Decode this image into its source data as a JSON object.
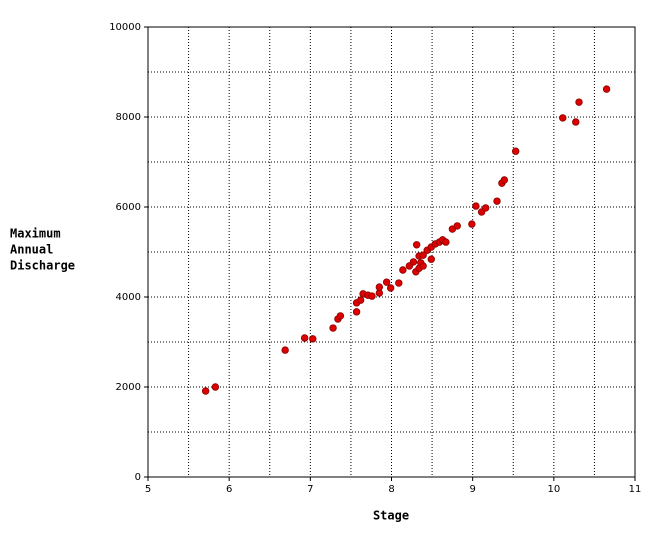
{
  "chart_data": {
    "type": "scatter",
    "xlabel": "Stage",
    "ylabel": [
      "Maximum",
      "Annual",
      "Discharge"
    ],
    "xlim": [
      5,
      11
    ],
    "xticks": [
      5,
      6,
      7,
      8,
      9,
      10,
      11
    ],
    "ylim": [
      0,
      10000
    ],
    "yticks": [
      0,
      2000,
      4000,
      6000,
      8000,
      10000
    ],
    "xgrid": [
      5.5,
      6,
      6.5,
      7,
      7.5,
      8,
      8.5,
      9,
      9.5,
      10,
      10.5
    ],
    "ygrid": [
      1000,
      2000,
      3000,
      4000,
      5000,
      6000,
      7000,
      8000,
      9000
    ],
    "grid": true,
    "color": "#dd0000",
    "x": [
      5.71,
      5.83,
      6.69,
      6.93,
      7.03,
      7.28,
      7.34,
      7.37,
      7.57,
      7.57,
      7.62,
      7.65,
      7.71,
      7.76,
      7.85,
      7.85,
      7.94,
      7.99,
      8.09,
      8.14,
      8.22,
      8.27,
      8.3,
      8.31,
      8.34,
      8.34,
      8.36,
      8.39,
      8.39,
      8.44,
      8.49,
      8.49,
      8.54,
      8.59,
      8.63,
      8.67,
      8.75,
      8.81,
      8.99,
      9.04,
      9.11,
      9.16,
      9.3,
      9.36,
      9.39,
      9.53,
      10.11,
      10.27,
      10.31,
      10.65
    ],
    "values": [
      1910,
      2000,
      2820,
      3090,
      3070,
      3310,
      3510,
      3580,
      3670,
      3870,
      3930,
      4070,
      4040,
      4020,
      4090,
      4220,
      4330,
      4200,
      4310,
      4600,
      4690,
      4780,
      4560,
      5160,
      4640,
      4910,
      4760,
      4930,
      4690,
      5040,
      4840,
      5110,
      5180,
      5220,
      5270,
      5220,
      5510,
      5580,
      5620,
      6020,
      5890,
      5980,
      6130,
      6530,
      6600,
      7240,
      7980,
      7890,
      8330,
      8620
    ]
  }
}
